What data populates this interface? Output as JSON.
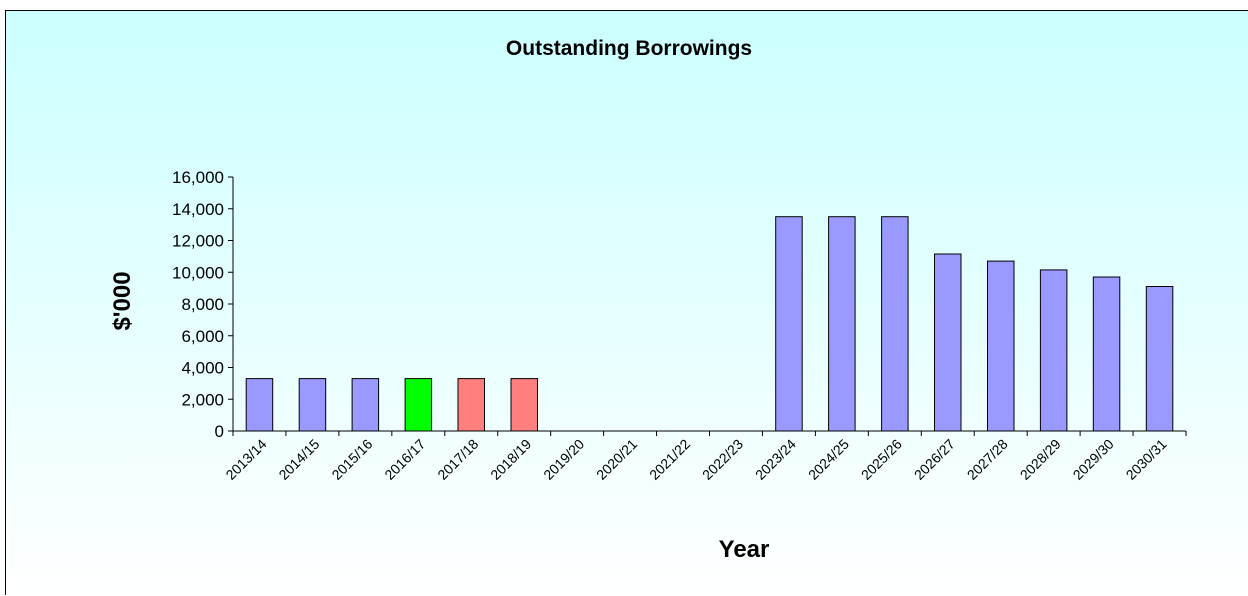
{
  "chart_data": {
    "type": "bar",
    "title": "Outstanding Borrowings",
    "xlabel": "Year",
    "ylabel": "$'000",
    "ylim": [
      0,
      16000
    ],
    "yticks": [
      0,
      2000,
      4000,
      6000,
      8000,
      10000,
      12000,
      14000,
      16000
    ],
    "ytick_labels": [
      "0",
      "2,000",
      "4,000",
      "6,000",
      "8,000",
      "10,000",
      "12,000",
      "14,000",
      "16,000"
    ],
    "categories": [
      "2013/14",
      "2014/15",
      "2015/16",
      "2016/17",
      "2017/18",
      "2018/19",
      "2019/20",
      "2020/21",
      "2021/22",
      "2022/23",
      "2023/24",
      "2024/25",
      "2025/26",
      "2026/27",
      "2027/28",
      "2028/29",
      "2029/30",
      "2030/31"
    ],
    "values": [
      3300,
      3300,
      3300,
      3300,
      3300,
      3300,
      0,
      0,
      0,
      0,
      13500,
      13500,
      13500,
      11150,
      10700,
      10150,
      9700,
      9100
    ],
    "bar_colors": [
      "#9999ff",
      "#9999ff",
      "#9999ff",
      "#00ff00",
      "#ff7f7f",
      "#ff7f7f",
      "#9999ff",
      "#9999ff",
      "#9999ff",
      "#9999ff",
      "#9999ff",
      "#9999ff",
      "#9999ff",
      "#9999ff",
      "#9999ff",
      "#9999ff",
      "#9999ff",
      "#9999ff"
    ],
    "grid": false,
    "legend": "none"
  },
  "colors": {
    "background_top": "#ccffff",
    "background_bottom": "#ffffff",
    "bar_default": "#9999ff",
    "bar_outline": "#000000"
  }
}
